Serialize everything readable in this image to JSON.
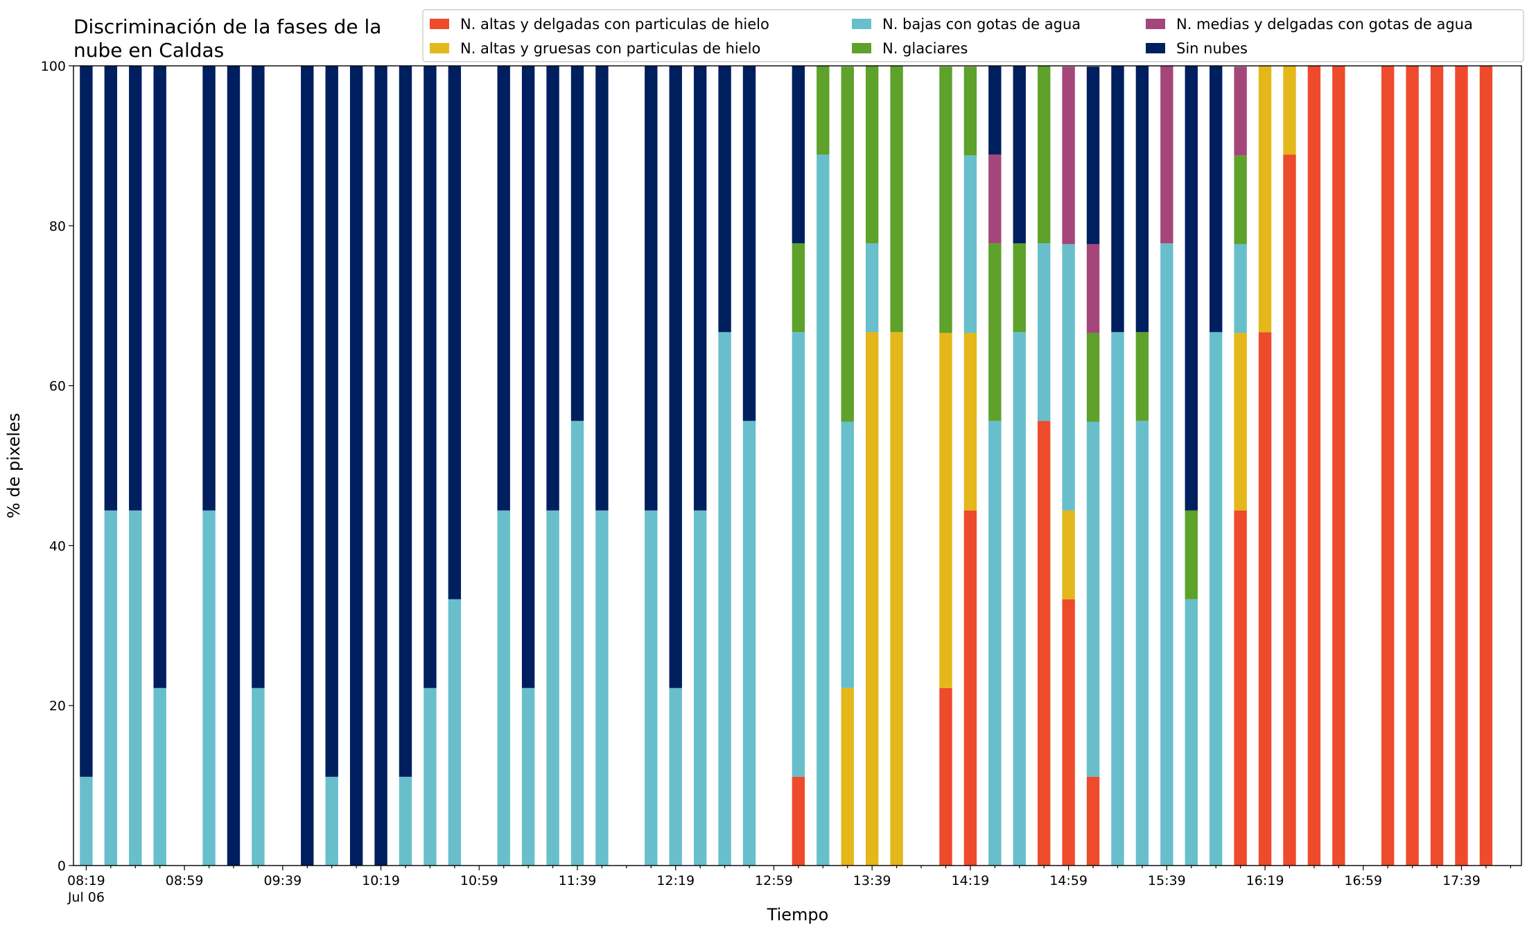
{
  "chart_data": {
    "type": "stacked-bar",
    "title": "Discriminación de la fases de la nube en Caldas",
    "x_label": "Tiempo",
    "y_label": "% de pixeles",
    "x_sublabel": "Jul 06",
    "categories": [
      "08:19",
      null,
      null,
      null,
      "08:59",
      null,
      null,
      null,
      "09:39",
      null,
      null,
      null,
      "10:19",
      null,
      null,
      null,
      "10:59",
      null,
      null,
      null,
      "11:39",
      null,
      null,
      null,
      "12:19",
      null,
      null,
      null,
      "12:59",
      null,
      null,
      null,
      "13:39",
      null,
      null,
      null,
      "14:19",
      null,
      null,
      null,
      "14:59",
      null,
      null,
      null,
      "15:39",
      null,
      null,
      null,
      "16:19",
      null,
      null,
      null,
      "16:59",
      null,
      null,
      null,
      "17:39",
      null
    ],
    "ylim": [
      0,
      100
    ],
    "yticks": [
      0,
      20,
      40,
      60,
      80,
      100
    ],
    "legend": "upper right",
    "series": [
      {
        "name": "N. altas y delgadas con particulas de hielo",
        "color": "#ee4a2c",
        "values": [
          0,
          0,
          0,
          0,
          0,
          0,
          0,
          0,
          0,
          0,
          0,
          0,
          0,
          0,
          0,
          0,
          0,
          0,
          0,
          0,
          0,
          0,
          0,
          0,
          0,
          0,
          0,
          0,
          0,
          11.1,
          0,
          0,
          0,
          0,
          0,
          22.2,
          44.4,
          0,
          0,
          55.6,
          33.3,
          11.1,
          0,
          0,
          0,
          0,
          0,
          44.4,
          66.7,
          88.9,
          100,
          100,
          0,
          100,
          100,
          100,
          100,
          100
        ]
      },
      {
        "name": "N. altas y gruesas con particulas de hielo",
        "color": "#e4b71a",
        "values": [
          0,
          0,
          0,
          0,
          0,
          0,
          0,
          0,
          0,
          0,
          0,
          0,
          0,
          0,
          0,
          0,
          0,
          0,
          0,
          0,
          0,
          0,
          0,
          0,
          0,
          0,
          0,
          0,
          0,
          0,
          0,
          22.2,
          66.7,
          66.7,
          0,
          44.4,
          22.2,
          0,
          0,
          0,
          11.1,
          0,
          0,
          0,
          0,
          0,
          0,
          22.2,
          33.3,
          11.1,
          0,
          0,
          0,
          0,
          0,
          0,
          0,
          0
        ]
      },
      {
        "name": "N. bajas con gotas de agua",
        "color": "#68bfcb",
        "values": [
          11.1,
          44.4,
          44.4,
          22.2,
          0,
          44.4,
          0,
          22.2,
          0,
          0,
          11.1,
          0,
          0,
          11.1,
          22.2,
          33.3,
          0,
          44.4,
          22.2,
          44.4,
          55.6,
          44.4,
          0,
          44.4,
          22.2,
          44.4,
          66.7,
          55.6,
          0,
          55.6,
          88.9,
          33.3,
          11.1,
          0,
          0,
          0,
          22.2,
          55.6,
          66.7,
          22.2,
          33.3,
          44.4,
          66.7,
          55.6,
          77.8,
          33.3,
          66.7,
          11.1,
          0,
          0,
          0,
          0,
          0,
          0,
          0,
          0,
          0,
          0
        ]
      },
      {
        "name": "N. glaciares",
        "color": "#5ea12b",
        "values": [
          0,
          0,
          0,
          0,
          0,
          0,
          0,
          0,
          0,
          0,
          0,
          0,
          0,
          0,
          0,
          0,
          0,
          0,
          0,
          0,
          0,
          0,
          0,
          0,
          0,
          0,
          0,
          0,
          0,
          11.1,
          11.1,
          44.4,
          22.2,
          33.3,
          0,
          33.3,
          11.1,
          22.2,
          11.1,
          22.2,
          0,
          11.1,
          0,
          11.1,
          0,
          11.1,
          0,
          11.1,
          0,
          0,
          0,
          0,
          0,
          0,
          0,
          0,
          0,
          0
        ]
      },
      {
        "name": "N. medias y delgadas con gotas de agua",
        "color": "#a5467a",
        "values": [
          0,
          0,
          0,
          0,
          0,
          0,
          0,
          0,
          0,
          0,
          0,
          0,
          0,
          0,
          0,
          0,
          0,
          0,
          0,
          0,
          0,
          0,
          0,
          0,
          0,
          0,
          0,
          0,
          0,
          0,
          0,
          0,
          0,
          0,
          0,
          0,
          0,
          11.1,
          0,
          0,
          22.2,
          11.1,
          0,
          0,
          22.2,
          0,
          0,
          11.1,
          0,
          0,
          0,
          0,
          0,
          0,
          0,
          0,
          0,
          0
        ]
      },
      {
        "name": "Sin nubes",
        "color": "#001f5f",
        "values": [
          88.9,
          55.6,
          55.6,
          77.8,
          0,
          55.6,
          100,
          77.8,
          0,
          100,
          88.9,
          100,
          100,
          88.9,
          77.8,
          66.7,
          0,
          55.6,
          77.8,
          55.6,
          44.4,
          55.6,
          0,
          55.6,
          77.8,
          55.6,
          33.3,
          44.4,
          0,
          22.2,
          0,
          0,
          0,
          0,
          0,
          0,
          0,
          11.1,
          22.2,
          0,
          0,
          22.2,
          33.3,
          33.3,
          0,
          55.6,
          33.3,
          0,
          0,
          0,
          0,
          0,
          0,
          0,
          0,
          0,
          0,
          0
        ]
      }
    ]
  }
}
